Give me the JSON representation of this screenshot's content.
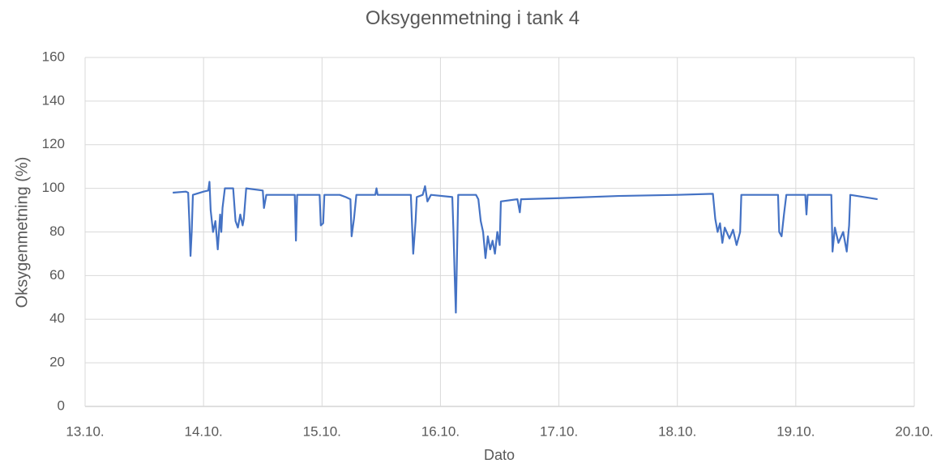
{
  "chart_data": {
    "type": "line",
    "title": "Oksygenmetning i tank 4",
    "xlabel": "Dato",
    "ylabel": "Oksygenmetning (%)",
    "xlim": [
      13,
      20
    ],
    "ylim": [
      0,
      160
    ],
    "xticks": [
      {
        "value": 13,
        "label": "13.10."
      },
      {
        "value": 14,
        "label": "14.10."
      },
      {
        "value": 15,
        "label": "15.10."
      },
      {
        "value": 16,
        "label": "16.10."
      },
      {
        "value": 17,
        "label": "17.10."
      },
      {
        "value": 18,
        "label": "18.10."
      },
      {
        "value": 19,
        "label": "19.10."
      },
      {
        "value": 20,
        "label": "20.10."
      }
    ],
    "yticks": [
      0,
      20,
      40,
      60,
      80,
      100,
      120,
      140,
      160
    ],
    "grid": true,
    "x": [
      13.74,
      13.85,
      13.87,
      13.88,
      13.89,
      13.9,
      13.91,
      14.0,
      14.04,
      14.05,
      14.06,
      14.08,
      14.1,
      14.12,
      14.14,
      14.15,
      14.16,
      14.18,
      14.25,
      14.27,
      14.29,
      14.31,
      14.33,
      14.34,
      14.36,
      14.5,
      14.51,
      14.53,
      14.65,
      14.77,
      14.78,
      14.79,
      14.98,
      14.99,
      15.01,
      15.02,
      15.15,
      15.2,
      15.24,
      15.25,
      15.27,
      15.29,
      15.45,
      15.46,
      15.47,
      15.75,
      15.77,
      15.79,
      15.8,
      15.85,
      15.87,
      15.89,
      15.92,
      16.1,
      16.11,
      16.12,
      16.13,
      16.14,
      16.15,
      16.3,
      16.32,
      16.34,
      16.36,
      16.38,
      16.4,
      16.42,
      16.44,
      16.46,
      16.48,
      16.5,
      16.51,
      16.65,
      16.67,
      16.68,
      17.0,
      17.5,
      18.0,
      18.3,
      18.32,
      18.34,
      18.36,
      18.38,
      18.4,
      18.44,
      18.47,
      18.5,
      18.53,
      18.54,
      18.85,
      18.86,
      18.88,
      18.9,
      18.92,
      19.08,
      19.09,
      19.1,
      19.3,
      19.31,
      19.33,
      19.36,
      19.4,
      19.43,
      19.45,
      19.46,
      19.69
    ],
    "series": [
      {
        "name": "Oksygenmetning",
        "color": "#4472c4",
        "values": [
          98,
          98.5,
          98,
          85,
          69,
          80,
          97,
          98.5,
          99,
          103,
          90,
          80,
          85,
          72,
          88,
          80,
          91,
          100,
          100,
          85,
          82,
          88,
          83,
          86,
          100,
          99,
          91,
          97,
          97,
          97,
          76,
          97,
          97,
          83,
          84,
          97,
          97,
          96,
          95,
          78,
          86,
          97,
          97,
          100,
          97,
          97,
          70,
          85,
          96,
          97,
          101,
          94,
          97,
          96,
          80,
          60,
          43,
          70,
          97,
          97,
          95,
          85,
          80,
          68,
          78,
          72,
          76,
          70,
          80,
          74,
          94,
          95,
          89,
          95,
          95.5,
          96.5,
          97,
          97.5,
          86,
          80,
          84,
          75,
          82,
          77,
          81,
          74,
          80,
          97,
          97,
          80,
          78,
          88,
          97,
          97,
          88,
          97,
          97,
          71,
          82,
          75,
          80,
          71,
          83,
          97,
          95
        ]
      }
    ]
  }
}
